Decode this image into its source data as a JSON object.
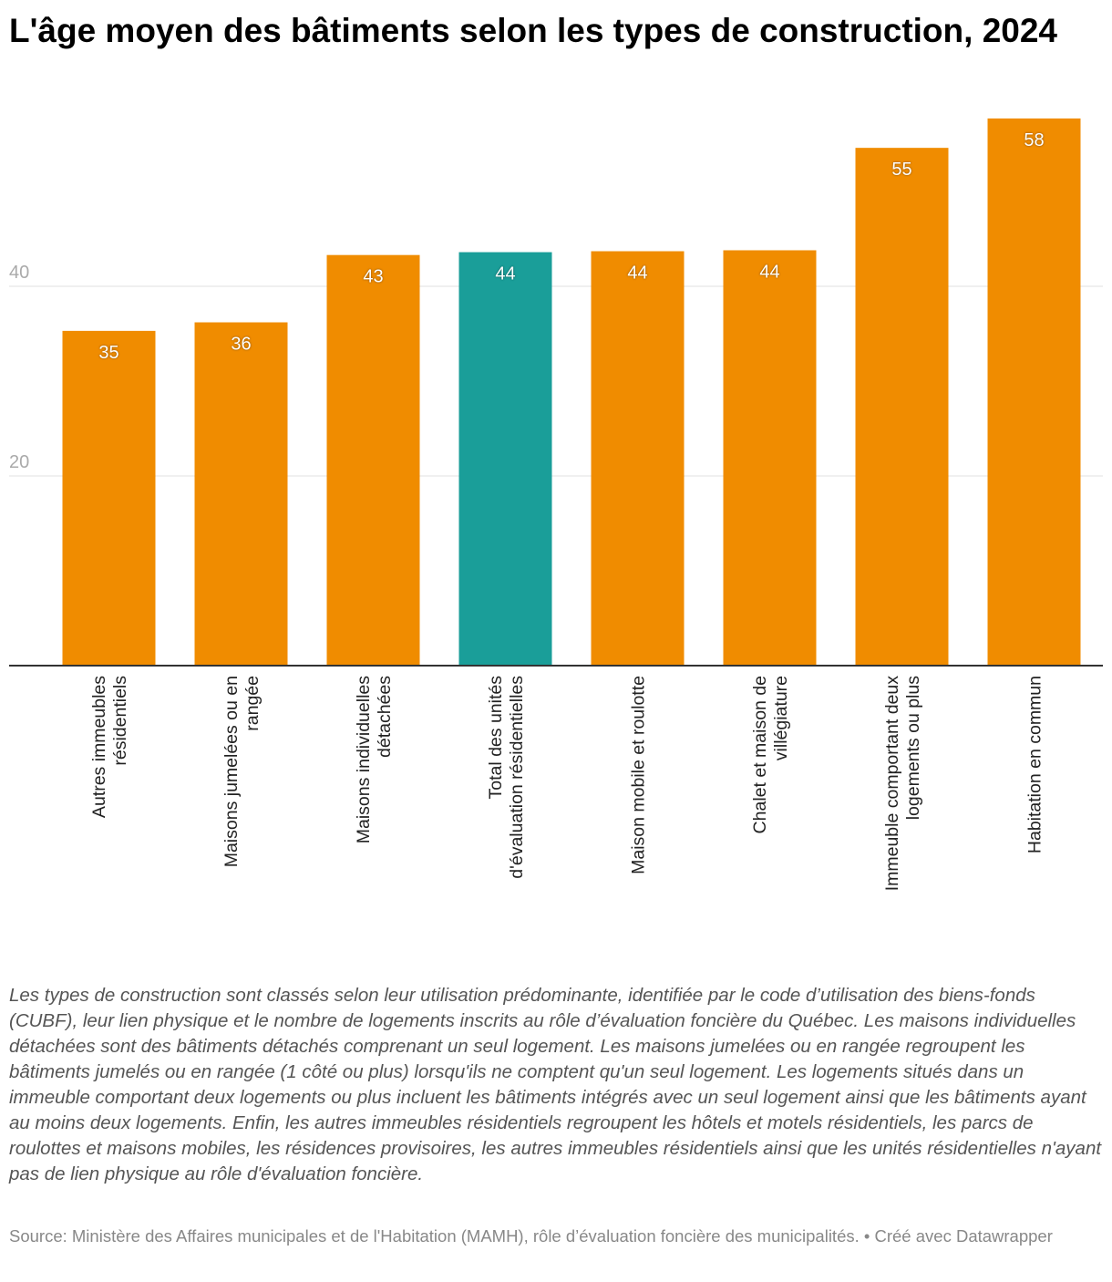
{
  "chart_data": {
    "type": "bar",
    "title": "L'âge moyen des bâtiments selon les types de construction, 2024",
    "categories": [
      "Autres immeubles résidentiels",
      "Maisons jumelées ou en rangée",
      "Maisons individuelles détachées",
      "Total des unités d'évaluation résidentielles",
      "Maison mobile et roulotte",
      "Chalet et maison de villégiature",
      "Immeuble comportant deux logements ou plus",
      "Habitation en commun"
    ],
    "values": [
      35.3,
      36.2,
      43.3,
      43.6,
      43.7,
      43.8,
      54.6,
      57.7
    ],
    "value_labels": [
      "35",
      "36",
      "43",
      "44",
      "44",
      "44",
      "55",
      "58"
    ],
    "colors": [
      "#f08c00",
      "#f08c00",
      "#f08c00",
      "#1a9e99",
      "#f08c00",
      "#f08c00",
      "#f08c00",
      "#f08c00"
    ],
    "ylim": [
      0,
      60
    ],
    "yticks": [
      20,
      40
    ],
    "grid": true,
    "notes": "Les types de construction sont classés selon leur utilisation prédominante, identifiée par le code d’utilisation des biens-fonds (CUBF), leur lien physique et le nombre de logements inscrits au rôle d’évaluation foncière du Québec. Les maisons individuelles détachées sont des bâtiments détachés comprenant un seul logement. Les maisons jumelées ou en rangée regroupent les bâtiments jumelés ou en rangée (1 côté ou plus) lorsqu'ils ne comptent qu'un seul logement. Les logements situés dans un immeuble comportant deux logements ou plus incluent les bâtiments intégrés avec un seul logement ainsi que les bâtiments ayant au moins deux logements. Enfin, les autres immeubles résidentiels regroupent les hôtels et motels résidentiels, les parcs de roulottes et maisons mobiles, les résidences provisoires, les autres immeubles résidentiels ainsi que les unités résidentielles n'ayant pas de lien physique au rôle d'évaluation foncière.",
    "source": "Source: Ministère des Affaires municipales et de l'Habitation (MAMH), rôle d’évaluation foncière des municipalités. • Créé avec Datawrapper"
  }
}
